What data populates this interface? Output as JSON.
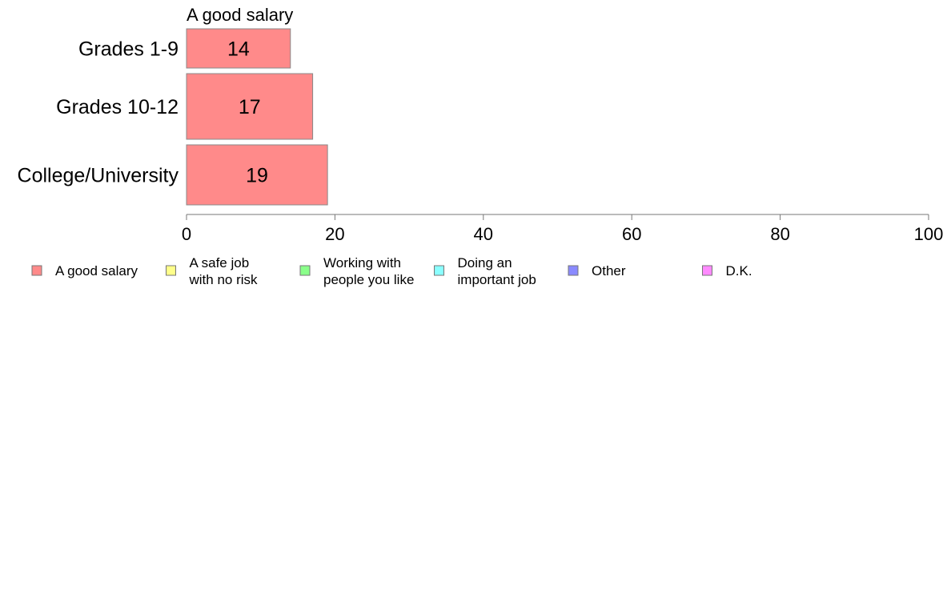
{
  "chart_data": {
    "type": "bar",
    "orientation": "horizontal",
    "categories": [
      "Grades 1-9",
      "Grades 10-12",
      "College/University"
    ],
    "series": [
      {
        "name": "A good salary",
        "values": [
          14,
          17,
          19
        ],
        "color": "#ff8a8a"
      }
    ],
    "series_label": "A good salary",
    "xlim": [
      0,
      100
    ],
    "xticks": [
      "0",
      "20",
      "40",
      "60",
      "80",
      "100"
    ],
    "grid": false,
    "legend_placement": "bottom",
    "legend": [
      {
        "lines": [
          "A good salary"
        ],
        "color": "#ff8a8a"
      },
      {
        "lines": [
          "A safe job",
          "with no risk"
        ],
        "color": "#ffff8a"
      },
      {
        "lines": [
          "Working with",
          "people you like"
        ],
        "color": "#8aff8a"
      },
      {
        "lines": [
          "Doing an",
          "important job"
        ],
        "color": "#8affff"
      },
      {
        "lines": [
          "Other"
        ],
        "color": "#8a8aff"
      },
      {
        "lines": [
          "D.K."
        ],
        "color": "#ff8aff"
      }
    ],
    "axis_color": "#777777",
    "bar_border_color": "#888888"
  }
}
